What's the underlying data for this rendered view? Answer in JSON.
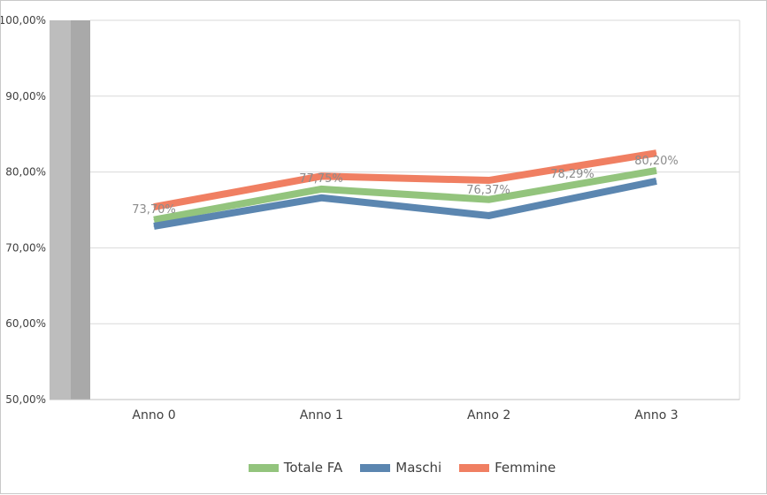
{
  "chart_data": {
    "type": "line",
    "categories": [
      "Anno 0",
      "Anno 1",
      "Anno 2",
      "Anno 3"
    ],
    "ylim": [
      0.5,
      1.0
    ],
    "yticks": [
      "50,00%",
      "60,00%",
      "70,00%",
      "80,00%",
      "90,00%",
      "100,00%"
    ],
    "series": [
      {
        "name": "Totale FA",
        "color": "#93c47d",
        "values": [
          0.737,
          0.7775,
          0.7637,
          0.802
        ]
      },
      {
        "name": "Maschi",
        "color": "#5b86b0",
        "values": [
          0.7285,
          0.766,
          0.7425,
          0.788
        ]
      },
      {
        "name": "Femmine",
        "color": "#f07f62",
        "values": [
          0.754,
          0.7945,
          0.789,
          0.825
        ]
      }
    ],
    "data_labels": [
      {
        "category": "Anno 0",
        "text": "73,70%"
      },
      {
        "category": "Anno 1",
        "text": "77,75%"
      },
      {
        "category": "Anno 2",
        "text": "76,37%"
      },
      {
        "category": "Anno 2.5",
        "text": "78,29%"
      },
      {
        "category": "Anno 3",
        "text": "80,20%"
      }
    ],
    "grid": true,
    "legend_position": "bottom"
  }
}
